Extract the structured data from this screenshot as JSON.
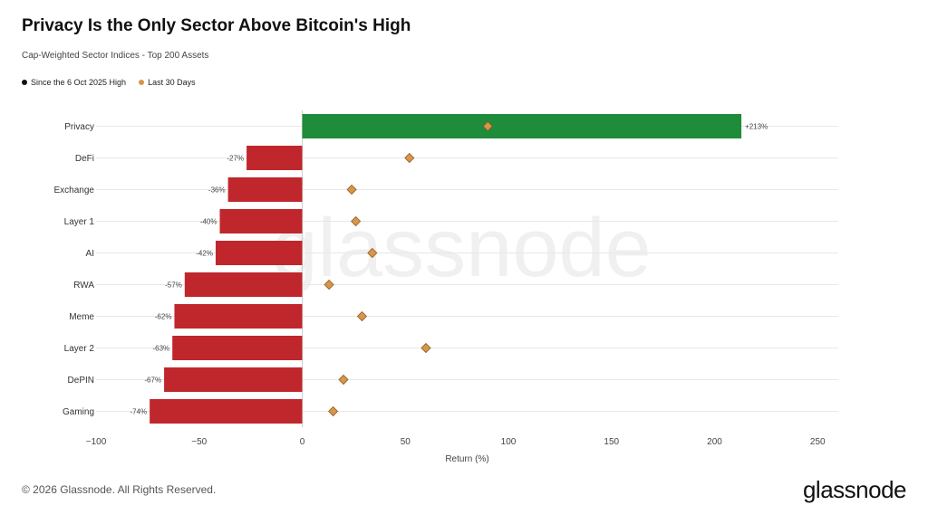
{
  "title": "Privacy Is the Only Sector Above Bitcoin's High",
  "subtitle": "Cap-Weighted Sector Indices - Top 200 Assets",
  "legend": [
    {
      "label": "Since the 6 Oct 2025 High",
      "color": "#111111"
    },
    {
      "label": "Last 30 Days",
      "color": "#d9954a"
    }
  ],
  "watermark": "glassnode",
  "footer": {
    "copyright": "© 2026 Glassnode. All Rights Reserved.",
    "logo": "glassnode"
  },
  "colors": {
    "positive": "#1e8c3a",
    "negative": "#c0272d",
    "diamond": "#d9954a",
    "grid": "#e8e8e8"
  },
  "chart_data": {
    "type": "bar",
    "orientation": "horizontal",
    "categories": [
      "Privacy",
      "DeFi",
      "Exchange",
      "Layer 1",
      "AI",
      "RWA",
      "Meme",
      "Layer 2",
      "DePIN",
      "Gaming"
    ],
    "series": [
      {
        "name": "Since the 6 Oct 2025 High",
        "values": [
          213,
          -27,
          -36,
          -40,
          -42,
          -57,
          -62,
          -63,
          -67,
          -74
        ],
        "labels": [
          "+213%",
          "-27%",
          "-36%",
          "-40%",
          "-42%",
          "-57%",
          "-62%",
          "-63%",
          "-67%",
          "-74%"
        ]
      },
      {
        "name": "Last 30 Days",
        "values": [
          90,
          52,
          24,
          26,
          34,
          13,
          29,
          60,
          20,
          15
        ]
      }
    ],
    "xlabel": "Return (%)",
    "xlim": [
      -100,
      260
    ],
    "xticks": [
      -100,
      -50,
      0,
      50,
      100,
      150,
      200,
      250
    ],
    "xtick_labels": [
      "−100",
      "−50",
      "0",
      "50",
      "100",
      "150",
      "200",
      "250"
    ],
    "grid": "horizontal",
    "legend_position": "top-left"
  }
}
